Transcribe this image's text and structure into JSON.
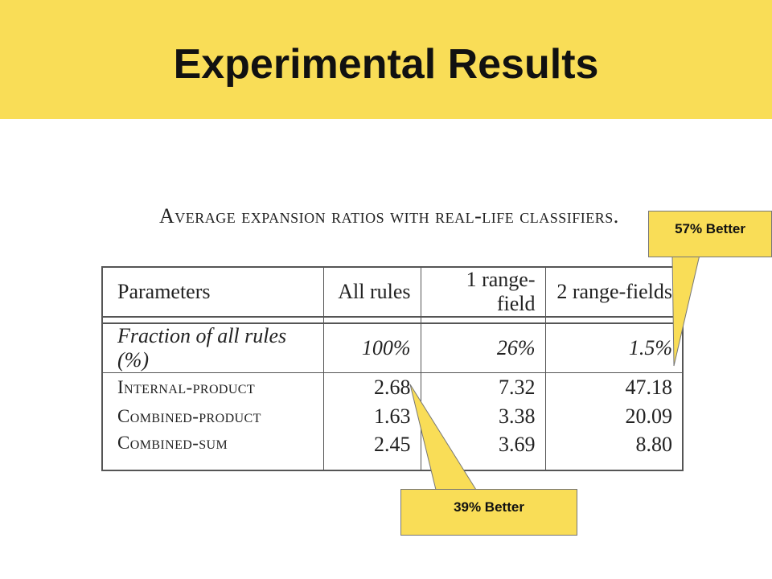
{
  "slide": {
    "title": "Experimental Results"
  },
  "table": {
    "caption": "Average expansion ratios with real-life classifiers.",
    "headers": [
      "Parameters",
      "All rules",
      "1 range-field",
      "2 range-fields"
    ],
    "fraction_row": [
      "Fraction of all rules (%)",
      "100%",
      "26%",
      "1.5%"
    ],
    "rows": [
      [
        "Internal-product",
        "2.68",
        "7.32",
        "47.18"
      ],
      [
        "Combined-product",
        "1.63",
        "3.38",
        "20.09"
      ],
      [
        "Combined-sum",
        "2.45",
        "3.69",
        "8.80"
      ]
    ]
  },
  "callouts": {
    "top_right": {
      "label": "57% Better"
    },
    "bottom": {
      "label": "39% Better"
    }
  },
  "colors": {
    "accent": "#f9dd57",
    "text": "#111111",
    "rule": "#555555"
  }
}
